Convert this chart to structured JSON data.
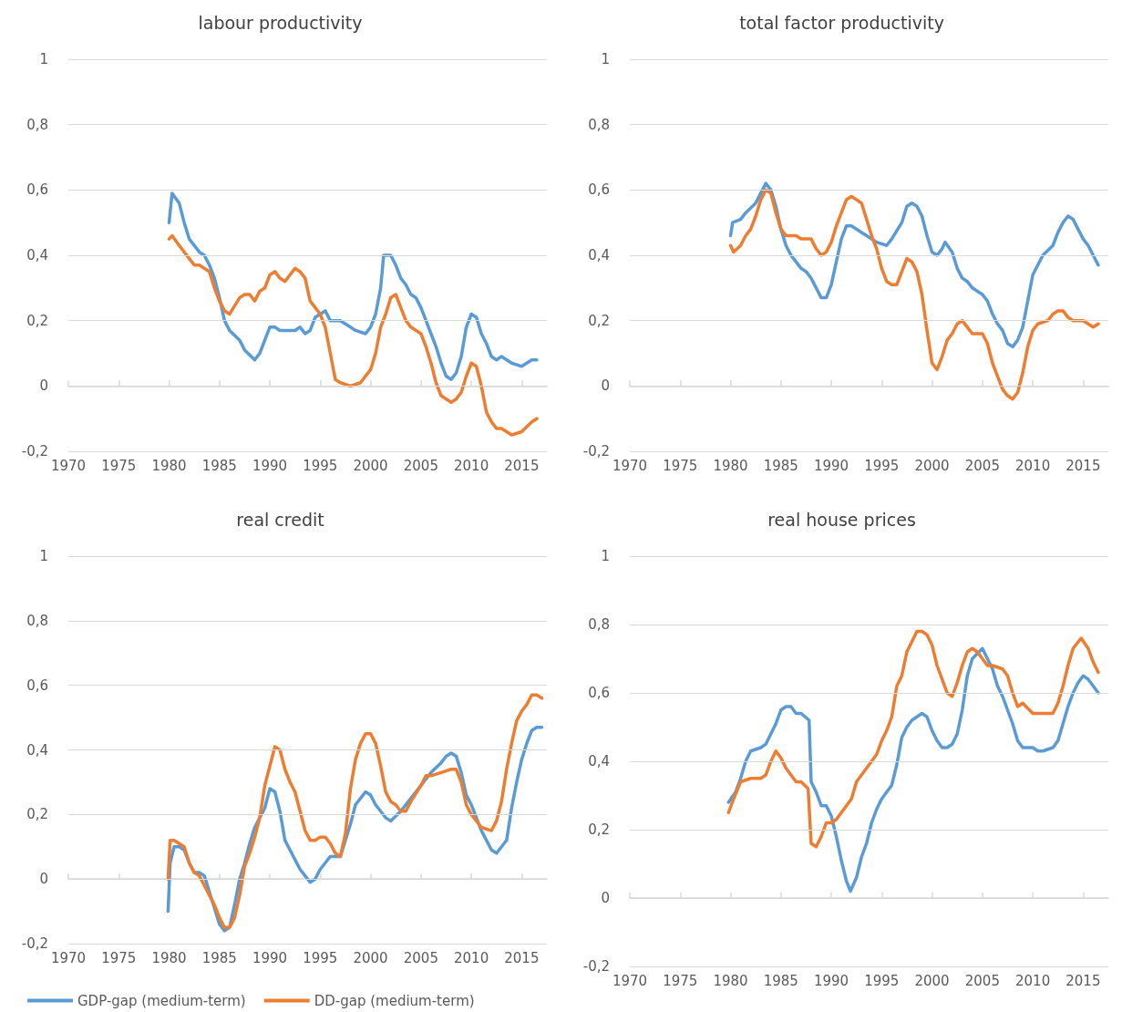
{
  "chart_data": [
    {
      "type": "line",
      "title": "labour productivity",
      "xlim": [
        1970,
        2017.5
      ],
      "xticks": [
        1970,
        1975,
        1980,
        1985,
        1990,
        1995,
        2000,
        2005,
        2010,
        2015
      ],
      "ylim": [
        -0.2,
        1
      ],
      "yticks": [
        {
          "value": -0.2,
          "label": "-0,2"
        },
        {
          "value": 0,
          "label": "0"
        },
        {
          "value": 0.2,
          "label": "0,2"
        },
        {
          "value": 0.4,
          "label": "0,4"
        },
        {
          "value": 0.6,
          "label": "0,6"
        },
        {
          "value": 0.8,
          "label": "0,8"
        },
        {
          "value": 1,
          "label": "1"
        }
      ],
      "grid": "y",
      "marker": "none",
      "line_style": "solid",
      "legend": false,
      "series": [
        {
          "color": "#5b9bd5",
          "x": [
            1980.0,
            1980.3,
            1981,
            1981.5,
            1982,
            1983,
            1983.5,
            1984,
            1984.5,
            1985,
            1985.5,
            1986,
            1987,
            1987.5,
            1988.5,
            1989,
            1989.5,
            1990,
            1990.5,
            1991,
            1992,
            1992.5,
            1993,
            1993.5,
            1994,
            1994.5,
            1995,
            1995.5,
            1996,
            1997,
            1998,
            1998.5,
            1999.5,
            2000,
            2000.5,
            2001,
            2001.3,
            2002,
            2002.5,
            2003,
            2003.5,
            2004,
            2004.5,
            2005,
            2005.5,
            2006,
            2006.5,
            2007,
            2007.5,
            2008,
            2008.5,
            2009,
            2009.5,
            2010,
            2010.5,
            2011,
            2011.5,
            2012,
            2012.5,
            2013,
            2014,
            2015,
            2016,
            2016.5
          ],
          "values": [
            0.5,
            0.59,
            0.56,
            0.5,
            0.45,
            0.41,
            0.4,
            0.37,
            0.33,
            0.27,
            0.2,
            0.17,
            0.14,
            0.11,
            0.08,
            0.1,
            0.14,
            0.18,
            0.18,
            0.17,
            0.17,
            0.17,
            0.18,
            0.16,
            0.17,
            0.21,
            0.22,
            0.23,
            0.2,
            0.2,
            0.18,
            0.17,
            0.16,
            0.18,
            0.22,
            0.3,
            0.4,
            0.4,
            0.37,
            0.33,
            0.31,
            0.28,
            0.27,
            0.24,
            0.2,
            0.16,
            0.12,
            0.07,
            0.03,
            0.02,
            0.04,
            0.09,
            0.18,
            0.22,
            0.21,
            0.16,
            0.13,
            0.09,
            0.08,
            0.09,
            0.07,
            0.06,
            0.08,
            0.08
          ]
        },
        {
          "color": "#ed7d31",
          "x": [
            1980,
            1980.3,
            1981,
            1982,
            1982.5,
            1983,
            1984,
            1984.5,
            1985,
            1985.5,
            1986,
            1987,
            1987.5,
            1988,
            1988.5,
            1989,
            1989.5,
            1990,
            1990.5,
            1991,
            1991.5,
            1992,
            1992.5,
            1993,
            1993.5,
            1994,
            1994.5,
            1995,
            1995.5,
            1996,
            1996.5,
            1997,
            1998,
            1999,
            2000,
            2000.5,
            2001,
            2001.5,
            2002,
            2002.5,
            2003,
            2003.5,
            2004,
            2005,
            2005.5,
            2006,
            2006.5,
            2007,
            2008,
            2008.5,
            2009,
            2009.5,
            2010,
            2010.5,
            2011,
            2011.5,
            2012,
            2012.5,
            2013,
            2014,
            2015,
            2016,
            2016.5
          ],
          "values": [
            0.45,
            0.46,
            0.43,
            0.39,
            0.37,
            0.37,
            0.35,
            0.3,
            0.26,
            0.23,
            0.22,
            0.27,
            0.28,
            0.28,
            0.26,
            0.29,
            0.3,
            0.34,
            0.35,
            0.33,
            0.32,
            0.34,
            0.36,
            0.35,
            0.33,
            0.26,
            0.24,
            0.22,
            0.18,
            0.1,
            0.02,
            0.01,
            0.0,
            0.01,
            0.05,
            0.1,
            0.18,
            0.22,
            0.27,
            0.28,
            0.24,
            0.2,
            0.18,
            0.16,
            0.12,
            0.07,
            0.01,
            -0.03,
            -0.05,
            -0.04,
            -0.02,
            0.03,
            0.07,
            0.06,
            0.0,
            -0.08,
            -0.11,
            -0.13,
            -0.13,
            -0.15,
            -0.14,
            -0.11,
            -0.1
          ]
        }
      ]
    },
    {
      "type": "line",
      "title": "total factor productivity",
      "xlim": [
        1970,
        2017.5
      ],
      "xticks": [
        1970,
        1975,
        1980,
        1985,
        1990,
        1995,
        2000,
        2005,
        2010,
        2015
      ],
      "ylim": [
        -0.2,
        1
      ],
      "yticks": [
        {
          "value": -0.2,
          "label": "-0,2"
        },
        {
          "value": 0,
          "label": "0"
        },
        {
          "value": 0.2,
          "label": "0,2"
        },
        {
          "value": 0.4,
          "label": "0,4"
        },
        {
          "value": 0.6,
          "label": "0,6"
        },
        {
          "value": 0.8,
          "label": "0,8"
        },
        {
          "value": 1,
          "label": "1"
        }
      ],
      "grid": "y",
      "marker": "none",
      "line_style": "solid",
      "legend": false,
      "series": [
        {
          "color": "#5b9bd5",
          "x": [
            1980,
            1980.2,
            1981,
            1981.5,
            1982.5,
            1983,
            1983.5,
            1984,
            1984.5,
            1985,
            1985.5,
            1986,
            1986.5,
            1987,
            1987.5,
            1988,
            1988.5,
            1989,
            1989.5,
            1990,
            1990.5,
            1991,
            1991.5,
            1992,
            1993,
            1994,
            1994.5,
            1995.5,
            1996,
            1997,
            1997.5,
            1998,
            1998.5,
            1999,
            1999.5,
            2000,
            2000.5,
            2001,
            2001.3,
            2002,
            2002.5,
            2003,
            2003.5,
            2004,
            2005,
            2005.5,
            2006,
            2006.5,
            2007,
            2007.5,
            2008,
            2008.5,
            2009,
            2009.5,
            2010,
            2010.5,
            2011,
            2012,
            2012.5,
            2013,
            2013.5,
            2014,
            2014.5,
            2015,
            2015.5,
            2016,
            2016.5
          ],
          "values": [
            0.46,
            0.5,
            0.51,
            0.53,
            0.56,
            0.59,
            0.62,
            0.6,
            0.55,
            0.48,
            0.43,
            0.4,
            0.38,
            0.36,
            0.35,
            0.33,
            0.3,
            0.27,
            0.27,
            0.31,
            0.38,
            0.45,
            0.49,
            0.49,
            0.47,
            0.45,
            0.44,
            0.43,
            0.45,
            0.5,
            0.55,
            0.56,
            0.55,
            0.52,
            0.46,
            0.41,
            0.4,
            0.42,
            0.44,
            0.41,
            0.36,
            0.33,
            0.32,
            0.3,
            0.28,
            0.26,
            0.22,
            0.19,
            0.17,
            0.13,
            0.12,
            0.14,
            0.18,
            0.26,
            0.34,
            0.37,
            0.4,
            0.43,
            0.47,
            0.5,
            0.52,
            0.51,
            0.48,
            0.45,
            0.43,
            0.4,
            0.37
          ]
        },
        {
          "color": "#ed7d31",
          "x": [
            1980,
            1980.3,
            1981,
            1981.5,
            1982,
            1982.5,
            1983,
            1983.5,
            1984,
            1984.5,
            1985,
            1985.5,
            1986.5,
            1987,
            1988,
            1988.5,
            1989,
            1989.5,
            1990,
            1990.5,
            1991,
            1991.5,
            1992,
            1992.5,
            1993,
            1993.5,
            1994,
            1994.5,
            1995,
            1995.5,
            1996,
            1996.5,
            1997,
            1997.5,
            1998,
            1998.5,
            1999,
            1999.5,
            2000,
            2000.5,
            2001,
            2001.5,
            2002,
            2002.5,
            2003,
            2003.5,
            2004,
            2005,
            2005.5,
            2006,
            2006.5,
            2007,
            2007.5,
            2008,
            2008.5,
            2009,
            2009.5,
            2010,
            2010.5,
            2011.5,
            2012,
            2012.5,
            2013,
            2013.5,
            2014,
            2015,
            2015.5,
            2016,
            2016.5
          ],
          "values": [
            0.43,
            0.41,
            0.43,
            0.46,
            0.48,
            0.52,
            0.57,
            0.6,
            0.59,
            0.53,
            0.48,
            0.46,
            0.46,
            0.45,
            0.45,
            0.42,
            0.4,
            0.41,
            0.44,
            0.49,
            0.53,
            0.57,
            0.58,
            0.57,
            0.56,
            0.51,
            0.46,
            0.42,
            0.36,
            0.32,
            0.31,
            0.31,
            0.35,
            0.39,
            0.38,
            0.35,
            0.28,
            0.17,
            0.07,
            0.05,
            0.09,
            0.14,
            0.16,
            0.19,
            0.2,
            0.18,
            0.16,
            0.16,
            0.13,
            0.07,
            0.03,
            -0.01,
            -0.03,
            -0.04,
            -0.02,
            0.04,
            0.12,
            0.17,
            0.19,
            0.2,
            0.22,
            0.23,
            0.23,
            0.21,
            0.2,
            0.2,
            0.19,
            0.18,
            0.19
          ]
        }
      ]
    },
    {
      "type": "line",
      "title": "real credit",
      "xlim": [
        1970,
        2017.5
      ],
      "xticks": [
        1970,
        1975,
        1980,
        1985,
        1990,
        1995,
        2000,
        2005,
        2010,
        2015
      ],
      "ylim": [
        -0.2,
        1
      ],
      "yticks": [
        {
          "value": -0.2,
          "label": "-0,2"
        },
        {
          "value": 0,
          "label": "0"
        },
        {
          "value": 0.2,
          "label": "0,2"
        },
        {
          "value": 0.4,
          "label": "0,4"
        },
        {
          "value": 0.6,
          "label": "0,6"
        },
        {
          "value": 0.8,
          "label": "0,8"
        },
        {
          "value": 1,
          "label": "1"
        }
      ],
      "grid": "y",
      "marker": "none",
      "line_style": "solid",
      "legend": "bottom",
      "series": [
        {
          "name": "GDP-gap (medium-term)",
          "color": "#5b9bd5",
          "x": [
            1979.9,
            1980.1,
            1980.5,
            1981,
            1981.5,
            1982,
            1982.5,
            1983,
            1983.5,
            1984,
            1984.5,
            1985,
            1985.5,
            1986,
            1986.5,
            1987,
            1987.5,
            1988,
            1988.5,
            1989,
            1989.5,
            1990,
            1990.5,
            1991,
            1991.5,
            1992,
            1992.5,
            1993,
            1993.5,
            1994,
            1994.5,
            1995,
            1995.5,
            1996,
            1997,
            1997.5,
            1998,
            1998.5,
            1999,
            1999.5,
            2000,
            2000.5,
            2001,
            2001.5,
            2002,
            2003,
            2004,
            2005,
            2005.5,
            2006,
            2007,
            2007.5,
            2008,
            2008.5,
            2009,
            2009.5,
            2010,
            2010.5,
            2011,
            2011.5,
            2012,
            2012.5,
            2013,
            2013.5,
            2014,
            2014.5,
            2015,
            2015.5,
            2016,
            2016.5,
            2017
          ],
          "values": [
            -0.1,
            0.05,
            0.1,
            0.1,
            0.09,
            0.05,
            0.02,
            0.02,
            0.01,
            -0.04,
            -0.09,
            -0.14,
            -0.16,
            -0.15,
            -0.08,
            0.0,
            0.05,
            0.11,
            0.16,
            0.19,
            0.22,
            0.28,
            0.27,
            0.21,
            0.12,
            0.09,
            0.06,
            0.03,
            0.01,
            -0.01,
            0.0,
            0.03,
            0.05,
            0.07,
            0.07,
            0.12,
            0.17,
            0.23,
            0.25,
            0.27,
            0.26,
            0.23,
            0.21,
            0.19,
            0.18,
            0.21,
            0.25,
            0.29,
            0.31,
            0.33,
            0.36,
            0.38,
            0.39,
            0.38,
            0.33,
            0.26,
            0.23,
            0.19,
            0.15,
            0.12,
            0.09,
            0.08,
            0.1,
            0.12,
            0.22,
            0.3,
            0.37,
            0.42,
            0.46,
            0.47,
            0.47
          ]
        },
        {
          "name": "DD-gap (medium-term)",
          "color": "#ed7d31",
          "x": [
            1979.9,
            1980.1,
            1980.5,
            1981,
            1981.5,
            1982,
            1982.5,
            1983,
            1983.5,
            1984,
            1984.5,
            1985,
            1985.5,
            1986,
            1986.5,
            1987,
            1987.5,
            1988,
            1988.5,
            1989,
            1989.5,
            1990,
            1990.5,
            1991,
            1991.5,
            1992,
            1992.5,
            1993,
            1993.5,
            1994,
            1994.5,
            1995,
            1995.5,
            1996,
            1996.5,
            1997,
            1997.5,
            1998,
            1998.5,
            1999,
            1999.5,
            2000,
            2000.5,
            2001,
            2001.5,
            2002,
            2002.5,
            2003,
            2003.5,
            2004,
            2005,
            2005.5,
            2006,
            2007,
            2008,
            2008.5,
            2009,
            2009.5,
            2010,
            2010.5,
            2011,
            2012,
            2012.5,
            2013,
            2013.5,
            2014,
            2014.5,
            2015,
            2015.5,
            2016,
            2016.5,
            2017
          ],
          "values": [
            0.0,
            0.12,
            0.12,
            0.11,
            0.1,
            0.05,
            0.02,
            0.01,
            -0.02,
            -0.05,
            -0.08,
            -0.12,
            -0.15,
            -0.15,
            -0.12,
            -0.05,
            0.04,
            0.08,
            0.13,
            0.19,
            0.29,
            0.35,
            0.41,
            0.4,
            0.34,
            0.3,
            0.27,
            0.21,
            0.15,
            0.12,
            0.12,
            0.13,
            0.13,
            0.11,
            0.08,
            0.07,
            0.14,
            0.28,
            0.37,
            0.42,
            0.45,
            0.45,
            0.42,
            0.35,
            0.27,
            0.24,
            0.23,
            0.21,
            0.21,
            0.24,
            0.29,
            0.32,
            0.32,
            0.33,
            0.34,
            0.34,
            0.3,
            0.23,
            0.2,
            0.18,
            0.16,
            0.15,
            0.18,
            0.24,
            0.34,
            0.42,
            0.49,
            0.52,
            0.54,
            0.57,
            0.57,
            0.56
          ]
        }
      ]
    },
    {
      "type": "line",
      "title": "real house prices",
      "xlim": [
        1970,
        2017.5
      ],
      "xticks": [
        1970,
        1975,
        1980,
        1985,
        1990,
        1995,
        2000,
        2005,
        2010,
        2015
      ],
      "ylim": [
        -0.2,
        1
      ],
      "yticks": [
        {
          "value": -0.2,
          "label": "-0,2"
        },
        {
          "value": 0,
          "label": "0"
        },
        {
          "value": 0.2,
          "label": "0,2"
        },
        {
          "value": 0.4,
          "label": "0,4"
        },
        {
          "value": 0.6,
          "label": "0,6"
        },
        {
          "value": 0.8,
          "label": "0,8"
        },
        {
          "value": 1,
          "label": "1"
        }
      ],
      "grid": "y",
      "marker": "none",
      "line_style": "solid",
      "legend": false,
      "series": [
        {
          "color": "#5b9bd5",
          "x": [
            1979.8,
            1980.5,
            1981,
            1981.5,
            1982,
            1983,
            1983.5,
            1984,
            1984.5,
            1985,
            1985.5,
            1986,
            1986.5,
            1987,
            1987.8,
            1988,
            1988.5,
            1989,
            1989.5,
            1990,
            1990.5,
            1991,
            1991.5,
            1991.9,
            1992.5,
            1993,
            1993.5,
            1994,
            1994.5,
            1995,
            1996,
            1996.5,
            1997,
            1997.5,
            1998,
            1999,
            1999.5,
            2000,
            2000.5,
            2001,
            2001.5,
            2002,
            2002.5,
            2003,
            2003.5,
            2004,
            2005,
            2005.5,
            2006,
            2006.5,
            2007,
            2007.5,
            2008,
            2008.5,
            2009,
            2010,
            2010.5,
            2011,
            2012,
            2012.5,
            2013,
            2013.5,
            2014,
            2014.5,
            2015,
            2015.5,
            2016,
            2016.5
          ],
          "values": [
            0.28,
            0.31,
            0.35,
            0.4,
            0.43,
            0.44,
            0.45,
            0.48,
            0.51,
            0.55,
            0.56,
            0.56,
            0.54,
            0.54,
            0.52,
            0.34,
            0.31,
            0.27,
            0.27,
            0.24,
            0.18,
            0.11,
            0.05,
            0.02,
            0.06,
            0.12,
            0.16,
            0.22,
            0.26,
            0.29,
            0.33,
            0.39,
            0.47,
            0.5,
            0.52,
            0.54,
            0.53,
            0.49,
            0.46,
            0.44,
            0.44,
            0.45,
            0.48,
            0.55,
            0.65,
            0.7,
            0.73,
            0.7,
            0.67,
            0.62,
            0.59,
            0.55,
            0.51,
            0.46,
            0.44,
            0.44,
            0.43,
            0.43,
            0.44,
            0.46,
            0.51,
            0.56,
            0.6,
            0.63,
            0.65,
            0.64,
            0.62,
            0.6
          ]
        },
        {
          "color": "#ed7d31",
          "x": [
            1979.8,
            1980.3,
            1981,
            1982,
            1983,
            1983.5,
            1984,
            1984.5,
            1985,
            1985.5,
            1986,
            1986.5,
            1987,
            1987.7,
            1988,
            1988.5,
            1989,
            1989.5,
            1990,
            1990.5,
            1991,
            1991.5,
            1992,
            1992.5,
            1993,
            1994,
            1994.5,
            1995,
            1995.5,
            1996,
            1996.5,
            1997,
            1997.5,
            1998,
            1998.5,
            1999,
            1999.5,
            2000,
            2000.5,
            2001,
            2001.5,
            2002,
            2002.5,
            2003,
            2003.5,
            2004,
            2004.5,
            2005,
            2005.5,
            2006,
            2007,
            2007.5,
            2008,
            2008.5,
            2009,
            2010,
            2011,
            2012,
            2012.5,
            2013,
            2013.5,
            2014,
            2014.8,
            2015.5,
            2016,
            2016.5
          ],
          "values": [
            0.25,
            0.29,
            0.34,
            0.35,
            0.35,
            0.36,
            0.4,
            0.43,
            0.41,
            0.38,
            0.36,
            0.34,
            0.34,
            0.32,
            0.16,
            0.15,
            0.18,
            0.22,
            0.22,
            0.23,
            0.25,
            0.27,
            0.29,
            0.34,
            0.36,
            0.4,
            0.42,
            0.46,
            0.49,
            0.53,
            0.62,
            0.65,
            0.72,
            0.75,
            0.78,
            0.78,
            0.77,
            0.74,
            0.68,
            0.64,
            0.6,
            0.59,
            0.63,
            0.68,
            0.72,
            0.73,
            0.72,
            0.7,
            0.68,
            0.68,
            0.67,
            0.65,
            0.6,
            0.56,
            0.57,
            0.54,
            0.54,
            0.54,
            0.57,
            0.62,
            0.68,
            0.73,
            0.76,
            0.73,
            0.69,
            0.66
          ]
        }
      ]
    }
  ]
}
